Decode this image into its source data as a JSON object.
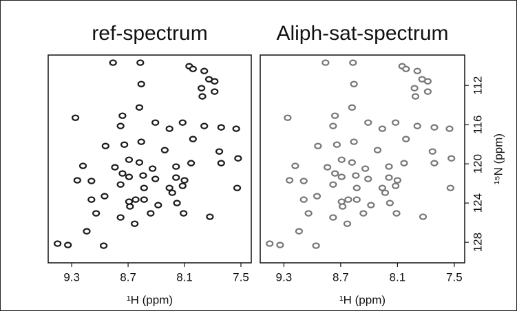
{
  "chart_data": [
    {
      "type": "scatter",
      "title": "ref-spectrum",
      "xlabel": "¹H (ppm)",
      "color": "#1a1a1a",
      "x": [
        8.86,
        8.57,
        8.05,
        8.01,
        7.89,
        7.84,
        7.78,
        7.92,
        7.91,
        7.78,
        8.56,
        8.58,
        9.26,
        8.76,
        8.78,
        8.41,
        8.12,
        8.26,
        7.89,
        7.71,
        7.55,
        8.01,
        8.94,
        8.74,
        8.56,
        7.73,
        7.53,
        8.69,
        8.31,
        7.71,
        9.18,
        8.84,
        8.58,
        8.44,
        8.19,
        8.03,
        9.24,
        9.09,
        8.76,
        8.69,
        8.54,
        8.41,
        8.78,
        8.19,
        8.1,
        8.12,
        8.53,
        8.26,
        7.54,
        8.95,
        8.69,
        8.62,
        8.53,
        8.68,
        8.38,
        8.18,
        9.09,
        8.23,
        8.11,
        8.78,
        8.46,
        9.04,
        8.63,
        7.83,
        9.14,
        9.45,
        9.34,
        8.96
      ],
      "y": [
        109.68,
        109.68,
        110.04,
        110.32,
        110.53,
        111.37,
        111.58,
        112.28,
        113.12,
        112.63,
        111.86,
        114.25,
        115.3,
        115.09,
        116.14,
        115.79,
        115.79,
        116.42,
        116.14,
        116.28,
        116.42,
        117.47,
        118.18,
        118.04,
        117.75,
        118.74,
        119.44,
        119.58,
        118.6,
        119.93,
        120.21,
        120.35,
        119.86,
        120.49,
        120.28,
        119.93,
        121.68,
        121.75,
        120.98,
        121.33,
        121.19,
        121.54,
        122.11,
        121.4,
        121.68,
        122.25,
        122.46,
        122.46,
        122.46,
        123.3,
        123.86,
        123.65,
        123.65,
        124.35,
        124.21,
        124.0,
        123.65,
        122.95,
        125.05,
        125.47,
        125.05,
        125.05,
        126.11,
        125.4,
        126.88,
        128.14,
        128.28,
        128.35
      ],
      "xlim": [
        9.55,
        7.39
      ],
      "ylim": [
        130.1,
        108.9
      ],
      "xticks": [
        9.3,
        8.7,
        8.1,
        7.5
      ]
    },
    {
      "type": "scatter",
      "title": "Aliph-sat-spectrum",
      "xlabel": "¹H (ppm)",
      "ylabel": "¹⁵N (ppm)",
      "color": "#777777",
      "x": [
        8.86,
        8.57,
        8.05,
        8.01,
        7.89,
        7.84,
        7.78,
        7.92,
        7.91,
        7.78,
        8.56,
        8.58,
        9.26,
        8.76,
        8.78,
        8.41,
        8.12,
        8.26,
        7.89,
        7.71,
        7.55,
        8.01,
        8.94,
        8.74,
        8.56,
        7.73,
        7.53,
        8.69,
        8.31,
        7.71,
        9.18,
        8.84,
        8.58,
        8.44,
        8.19,
        8.03,
        9.24,
        9.09,
        8.76,
        8.69,
        8.54,
        8.41,
        8.78,
        8.19,
        8.1,
        8.12,
        8.53,
        8.26,
        7.54,
        8.95,
        8.69,
        8.62,
        8.53,
        8.68,
        8.38,
        8.18,
        9.09,
        8.23,
        8.11,
        8.78,
        8.46,
        9.04,
        8.63,
        7.83,
        9.14,
        9.45,
        9.34,
        8.96
      ],
      "y": [
        109.68,
        109.68,
        110.04,
        110.32,
        110.53,
        111.37,
        111.58,
        112.28,
        113.12,
        112.63,
        111.86,
        114.25,
        115.3,
        115.09,
        116.14,
        115.79,
        115.79,
        116.42,
        116.14,
        116.28,
        116.42,
        117.47,
        118.18,
        118.04,
        117.75,
        118.74,
        119.44,
        119.58,
        118.6,
        119.93,
        120.21,
        120.35,
        119.86,
        120.49,
        120.28,
        119.93,
        121.68,
        121.75,
        120.98,
        121.33,
        121.19,
        121.54,
        122.11,
        121.4,
        121.68,
        122.25,
        122.46,
        122.46,
        122.46,
        123.3,
        123.86,
        123.65,
        123.65,
        124.35,
        124.21,
        124.0,
        123.65,
        122.95,
        125.05,
        125.47,
        125.05,
        125.05,
        126.11,
        125.4,
        126.88,
        128.14,
        128.28,
        128.35
      ],
      "xlim": [
        9.55,
        7.39
      ],
      "ylim": [
        130.1,
        108.9
      ],
      "xticks": [
        9.3,
        8.7,
        8.1,
        7.5
      ],
      "yticks": [
        112,
        116,
        120,
        124,
        128
      ]
    }
  ]
}
